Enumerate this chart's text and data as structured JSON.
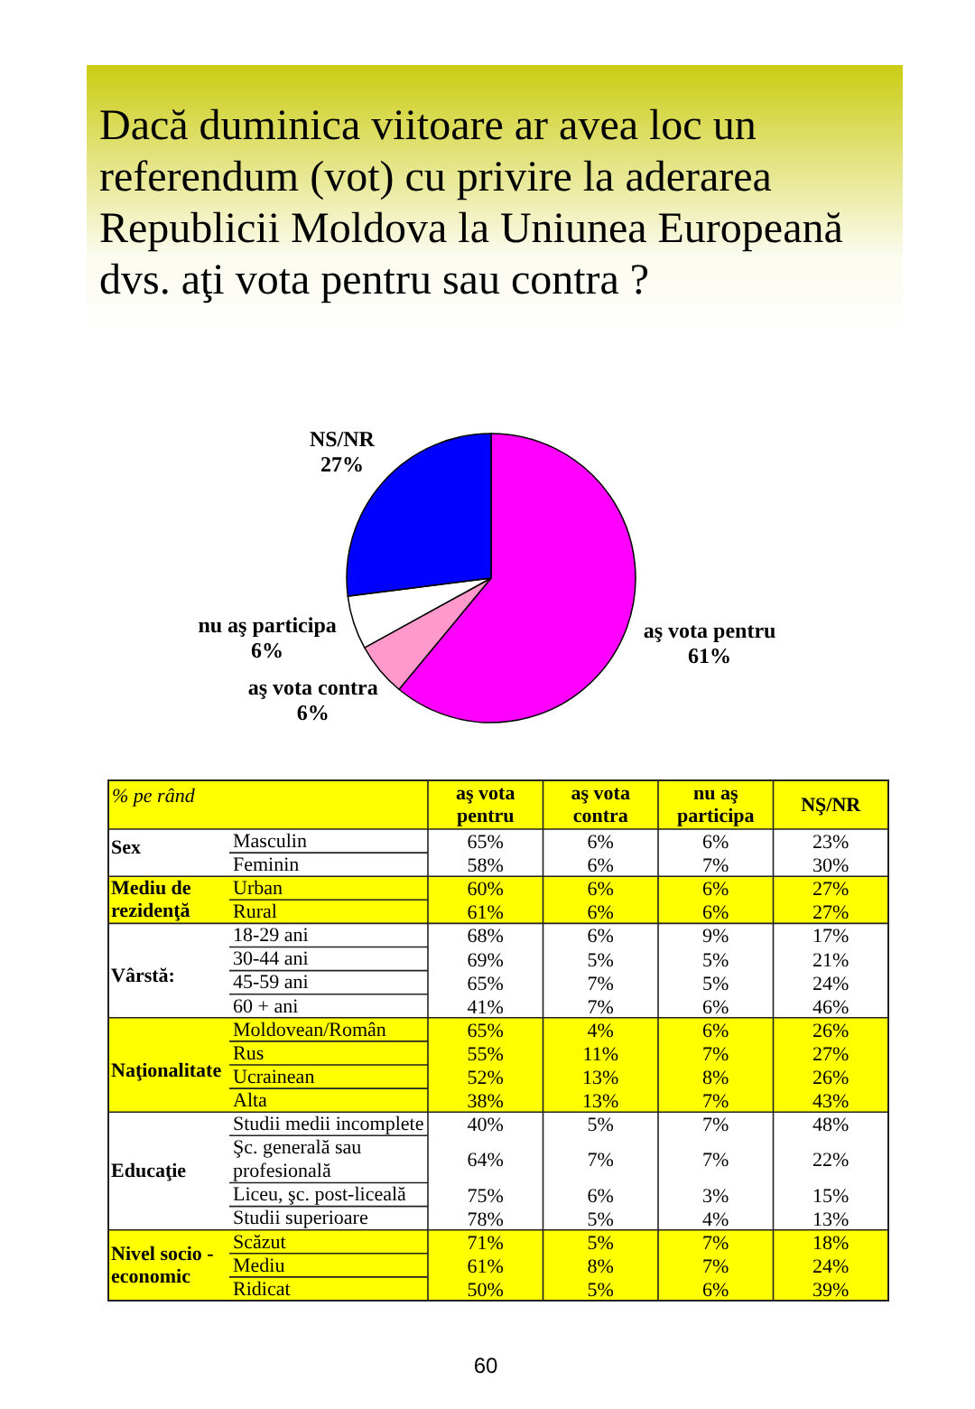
{
  "chart_data": [
    {
      "type": "pie",
      "title": "Dacă duminica viitoare ar avea loc un referendum (vot) cu privire la aderarea Republicii Moldova la Uniunea Europeană dvs. aţi vota pentru sau contra ?",
      "categories": [
        "aş vota pentru",
        "aş vota contra",
        "nu aş participa",
        "NS/NR"
      ],
      "values": [
        61,
        6,
        6,
        27
      ],
      "colors": [
        "#ff00ff",
        "#ff99cc",
        "#ffffff",
        "#0000ff"
      ],
      "value_labels": [
        "61%",
        "6%",
        "6%",
        "27%"
      ]
    },
    {
      "type": "heatmap",
      "categories": [
        "aş vota pentru",
        "aş vota contra",
        "nu aş participa",
        "NŞ/NR"
      ],
      "y_categories": [
        "Masculin",
        "Feminin",
        "Urban",
        "Rural",
        "18-29 ani",
        "30-44 ani",
        "45-59 ani",
        "60 + ani",
        "Moldovean/Român",
        "Rus",
        "Ucrainean",
        "Alta",
        "Studii medii incomplete",
        "Şc. generală sau profesională",
        "Liceu, şc. post-liceală",
        "Studii superioare",
        "Scăzut",
        "Mediu",
        "Ridicat"
      ],
      "y2_categories": [
        "Sex",
        null,
        "Mediu de rezidenţă",
        null,
        null,
        null,
        "Vârstă:",
        null,
        null,
        null,
        "Naţionalitate",
        null,
        null,
        "Educaţie",
        null,
        null,
        null,
        "Nivel socio - economic",
        null
      ],
      "cells": [
        [
          65,
          6,
          6,
          23
        ],
        [
          58,
          6,
          7,
          30
        ],
        [
          60,
          6,
          6,
          27
        ],
        [
          61,
          6,
          6,
          27
        ],
        [
          68,
          6,
          9,
          17
        ],
        [
          69,
          5,
          5,
          21
        ],
        [
          65,
          7,
          5,
          24
        ],
        [
          41,
          7,
          6,
          46
        ],
        [
          65,
          4,
          6,
          26
        ],
        [
          55,
          11,
          7,
          27
        ],
        [
          52,
          13,
          8,
          26
        ],
        [
          38,
          13,
          7,
          43
        ],
        [
          40,
          5,
          7,
          48
        ],
        [
          64,
          7,
          7,
          22
        ],
        [
          75,
          6,
          3,
          15
        ],
        [
          78,
          5,
          4,
          13
        ],
        [
          71,
          5,
          7,
          18
        ],
        [
          61,
          8,
          7,
          24
        ],
        [
          50,
          5,
          6,
          39
        ]
      ],
      "cell_labels": [
        [
          "65%",
          "6%",
          "6%",
          "23%"
        ],
        [
          "58%",
          "6%",
          "7%",
          "30%"
        ],
        [
          "60%",
          "6%",
          "6%",
          "27%"
        ],
        [
          "61%",
          "6%",
          "6%",
          "27%"
        ],
        [
          "68%",
          "6%",
          "9%",
          "17%"
        ],
        [
          "69%",
          "5%",
          "5%",
          "21%"
        ],
        [
          "65%",
          "7%",
          "5%",
          "24%"
        ],
        [
          "41%",
          "7%",
          "6%",
          "46%"
        ],
        [
          "65%",
          "4%",
          "6%",
          "26%"
        ],
        [
          "55%",
          "11%",
          "7%",
          "27%"
        ],
        [
          "52%",
          "13%",
          "8%",
          "26%"
        ],
        [
          "38%",
          "13%",
          "7%",
          "43%"
        ],
        [
          "40%",
          "5%",
          "7%",
          "48%"
        ],
        [
          "64%",
          "7%",
          "7%",
          "22%"
        ],
        [
          "75%",
          "6%",
          "3%",
          "15%"
        ],
        [
          "78%",
          "5%",
          "4%",
          "13%"
        ],
        [
          "71%",
          "5%",
          "7%",
          "18%"
        ],
        [
          "61%",
          "8%",
          "7%",
          "24%"
        ],
        [
          "50%",
          "5%",
          "6%",
          "39%"
        ]
      ],
      "bands": [
        {
          "axis": "y",
          "from": "Urban",
          "to": "Rural",
          "color": "#ffff00"
        },
        {
          "axis": "y",
          "from": "Moldovean/Român",
          "to": "Alta",
          "color": "#ffff00"
        },
        {
          "axis": "y",
          "from": "Scăzut",
          "to": "Ridicat",
          "color": "#ffff00"
        }
      ],
      "annotations": [
        "% pe rând",
        "60"
      ]
    }
  ]
}
